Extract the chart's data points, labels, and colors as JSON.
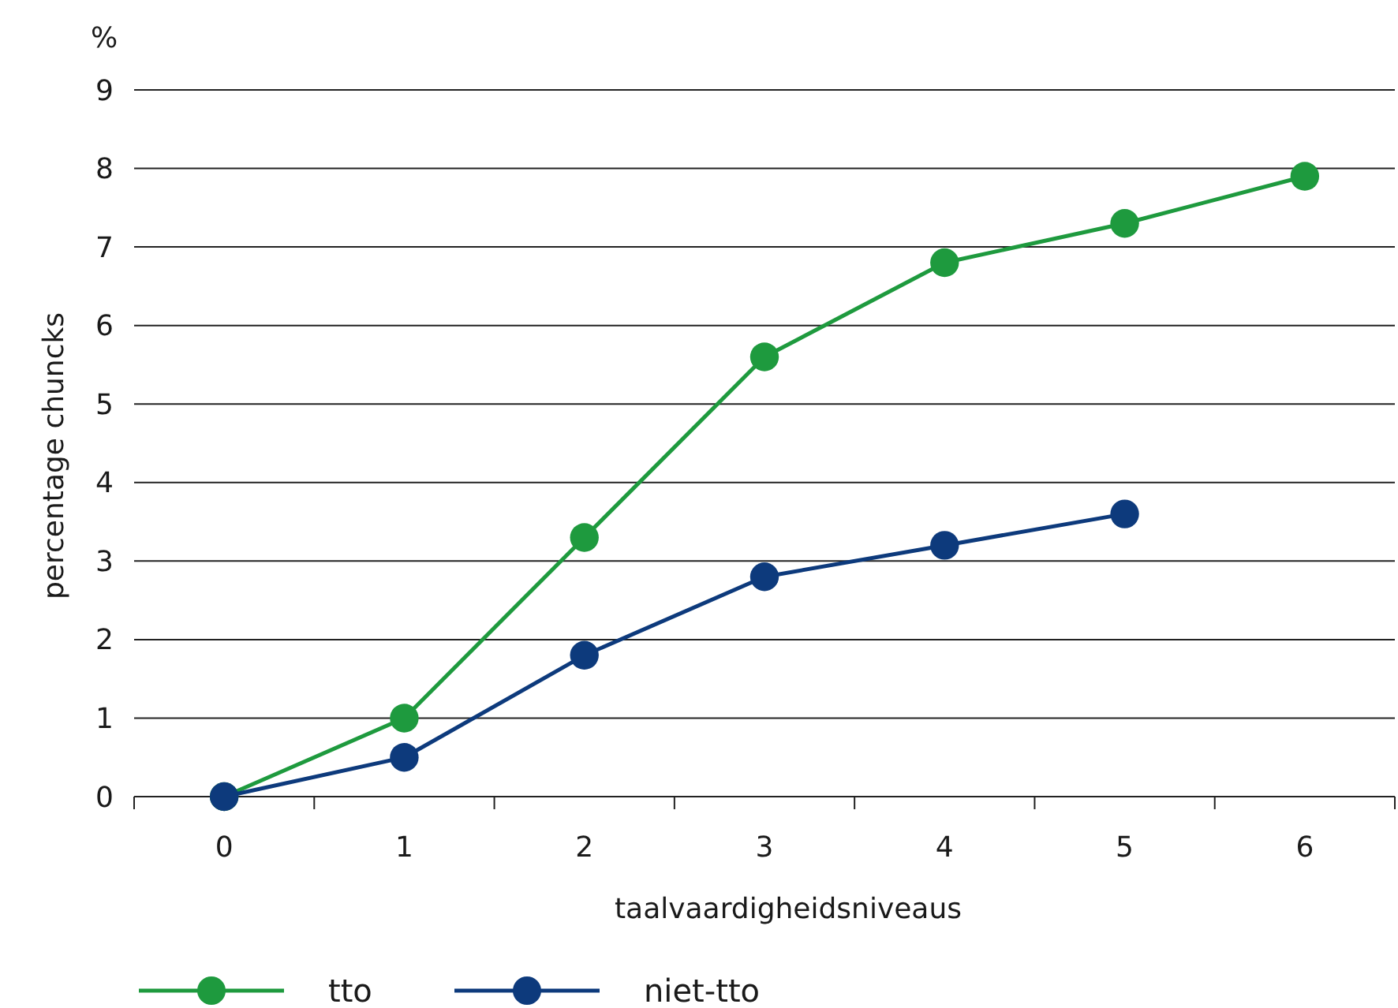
{
  "chart_data": {
    "type": "line",
    "xlabel": "taalvaardigheidsniveaus",
    "ylabel": "percentage chuncks",
    "annotations": [
      "%"
    ],
    "categories": [
      "0",
      "1",
      "2",
      "3",
      "4",
      "5",
      "6"
    ],
    "series": [
      {
        "name": "tto",
        "color": "#1e9a3e",
        "values": [
          0,
          1.0,
          3.3,
          5.6,
          6.8,
          7.3,
          7.9
        ]
      },
      {
        "name": "niet-tto",
        "color": "#0d3a7c",
        "values": [
          0,
          0.5,
          1.8,
          2.8,
          3.2,
          3.6,
          null
        ]
      }
    ],
    "ylim": [
      0,
      9
    ],
    "yticks": [
      0,
      1,
      2,
      3,
      4,
      5,
      6,
      7,
      8,
      9
    ],
    "grid": "y",
    "legend": "bottom",
    "marker": "circle",
    "line_style": "solid"
  }
}
